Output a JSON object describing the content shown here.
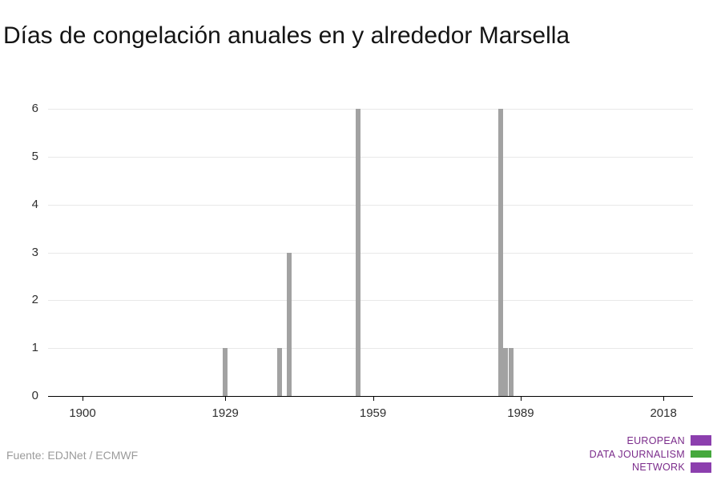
{
  "title": "Días de congelación anuales en y alrededor Marsella",
  "source": "Fuente: EDJNet / ECMWF",
  "logo": {
    "line1": "EUROPEAN",
    "line2": "DATA JOURNALISM",
    "line3": "NETWORK",
    "text_color": "#7b2c8b",
    "purple": "#8c3fae",
    "green": "#45a83d"
  },
  "chart_data": {
    "type": "bar",
    "title": "Días de congelación anuales en y alrededor Marsella",
    "xlabel": "",
    "ylabel": "",
    "xlim": [
      1893,
      2024
    ],
    "ylim": [
      0,
      6
    ],
    "xticks": [
      1900,
      1929,
      1959,
      1989,
      2018
    ],
    "yticks": [
      0,
      1,
      2,
      3,
      4,
      5,
      6
    ],
    "grid": "horizontal",
    "legend": "none",
    "bar_color": "#a2a2a2",
    "points": [
      {
        "x": 1929,
        "y": 1
      },
      {
        "x": 1940,
        "y": 1
      },
      {
        "x": 1942,
        "y": 3
      },
      {
        "x": 1956,
        "y": 6
      },
      {
        "x": 1985,
        "y": 6
      },
      {
        "x": 1986,
        "y": 1
      },
      {
        "x": 1987,
        "y": 1
      }
    ]
  }
}
